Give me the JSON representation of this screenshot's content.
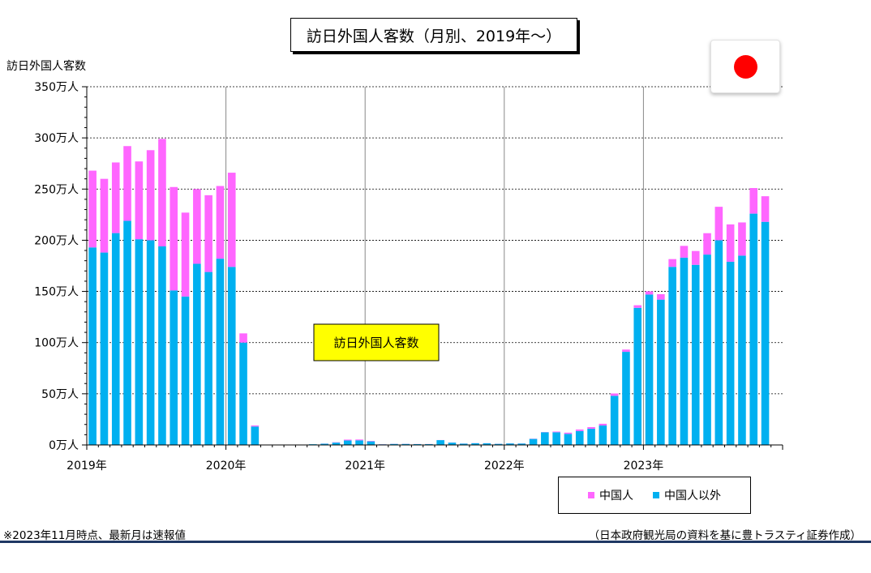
{
  "chart_data": {
    "type": "bar",
    "stacked": true,
    "title": "訪日外国人客数（月別、2019年～）",
    "ylabel": "訪日外国人客数",
    "annotation": "訪日外国人客数",
    "ylim": [
      0,
      350
    ],
    "yticks": [
      0,
      50,
      100,
      150,
      200,
      250,
      300,
      350
    ],
    "ytick_labels": [
      "0万人",
      "50万人",
      "100万人",
      "150万人",
      "200万人",
      "250万人",
      "300万人",
      "350万人"
    ],
    "year_labels": [
      "2019年",
      "2020年",
      "2021年",
      "2022年",
      "2023年"
    ],
    "grid": "horizontal dotted; vertical solid at year boundaries",
    "legend_position": "bottom-right",
    "x": [
      "2019-01",
      "2019-02",
      "2019-03",
      "2019-04",
      "2019-05",
      "2019-06",
      "2019-07",
      "2019-08",
      "2019-09",
      "2019-10",
      "2019-11",
      "2019-12",
      "2020-01",
      "2020-02",
      "2020-03",
      "2020-04",
      "2020-05",
      "2020-06",
      "2020-07",
      "2020-08",
      "2020-09",
      "2020-10",
      "2020-11",
      "2020-12",
      "2021-01",
      "2021-02",
      "2021-03",
      "2021-04",
      "2021-05",
      "2021-06",
      "2021-07",
      "2021-08",
      "2021-09",
      "2021-10",
      "2021-11",
      "2021-12",
      "2022-01",
      "2022-02",
      "2022-03",
      "2022-04",
      "2022-05",
      "2022-06",
      "2022-07",
      "2022-08",
      "2022-09",
      "2022-10",
      "2022-11",
      "2022-12",
      "2023-01",
      "2023-02",
      "2023-03",
      "2023-04",
      "2023-05",
      "2023-06",
      "2023-07",
      "2023-08",
      "2023-09",
      "2023-10",
      "2023-11"
    ],
    "series": [
      {
        "name": "中国人以外",
        "color": "#00b0f0",
        "values": [
          193,
          188,
          207,
          219,
          201,
          200,
          194,
          151,
          145,
          177,
          169,
          182,
          174,
          100,
          18,
          0.2,
          0.1,
          0.2,
          0.3,
          0.7,
          1.2,
          2.3,
          4.4,
          4.5,
          3.5,
          0.6,
          1.0,
          1.0,
          0.8,
          0.8,
          4.7,
          2.3,
          1.3,
          1.7,
          1.6,
          1.1,
          1.5,
          1.4,
          5.9,
          12.4,
          12.4,
          10.8,
          13.6,
          15.8,
          19.0,
          48.0,
          91.0,
          134.0,
          147.0,
          142.0,
          174.0,
          183.0,
          176.0,
          186.0,
          200.0,
          179.0,
          185.0,
          226.0,
          218.0
        ]
      },
      {
        "name": "中国人",
        "color": "#ff66ff",
        "values": [
          75,
          72,
          69,
          73,
          76,
          88,
          105,
          101,
          82,
          73,
          75,
          71,
          92,
          9,
          1,
          0,
          0,
          0,
          0,
          0,
          0.1,
          0.3,
          0.8,
          0.8,
          0.4,
          0.1,
          0.1,
          0.1,
          0.1,
          0.1,
          0.1,
          0.1,
          0.1,
          0.1,
          0.1,
          0.1,
          0.1,
          0.1,
          0.2,
          0.2,
          0.7,
          1.2,
          1.5,
          1.6,
          1.7,
          2.3,
          2.2,
          2.5,
          3.1,
          5.3,
          7.6,
          11.5,
          13.5,
          20.9,
          32.7,
          36.5,
          32.4,
          25.0,
          25.0
        ]
      }
    ]
  },
  "notes": {
    "left": "※2023年11月時点、最新月は速報値",
    "right": "（日本政府観光局の資料を基に豊トラスティ証券作成）"
  },
  "flag": {
    "icon": "japan-flag-icon",
    "color": "#ff0000"
  }
}
